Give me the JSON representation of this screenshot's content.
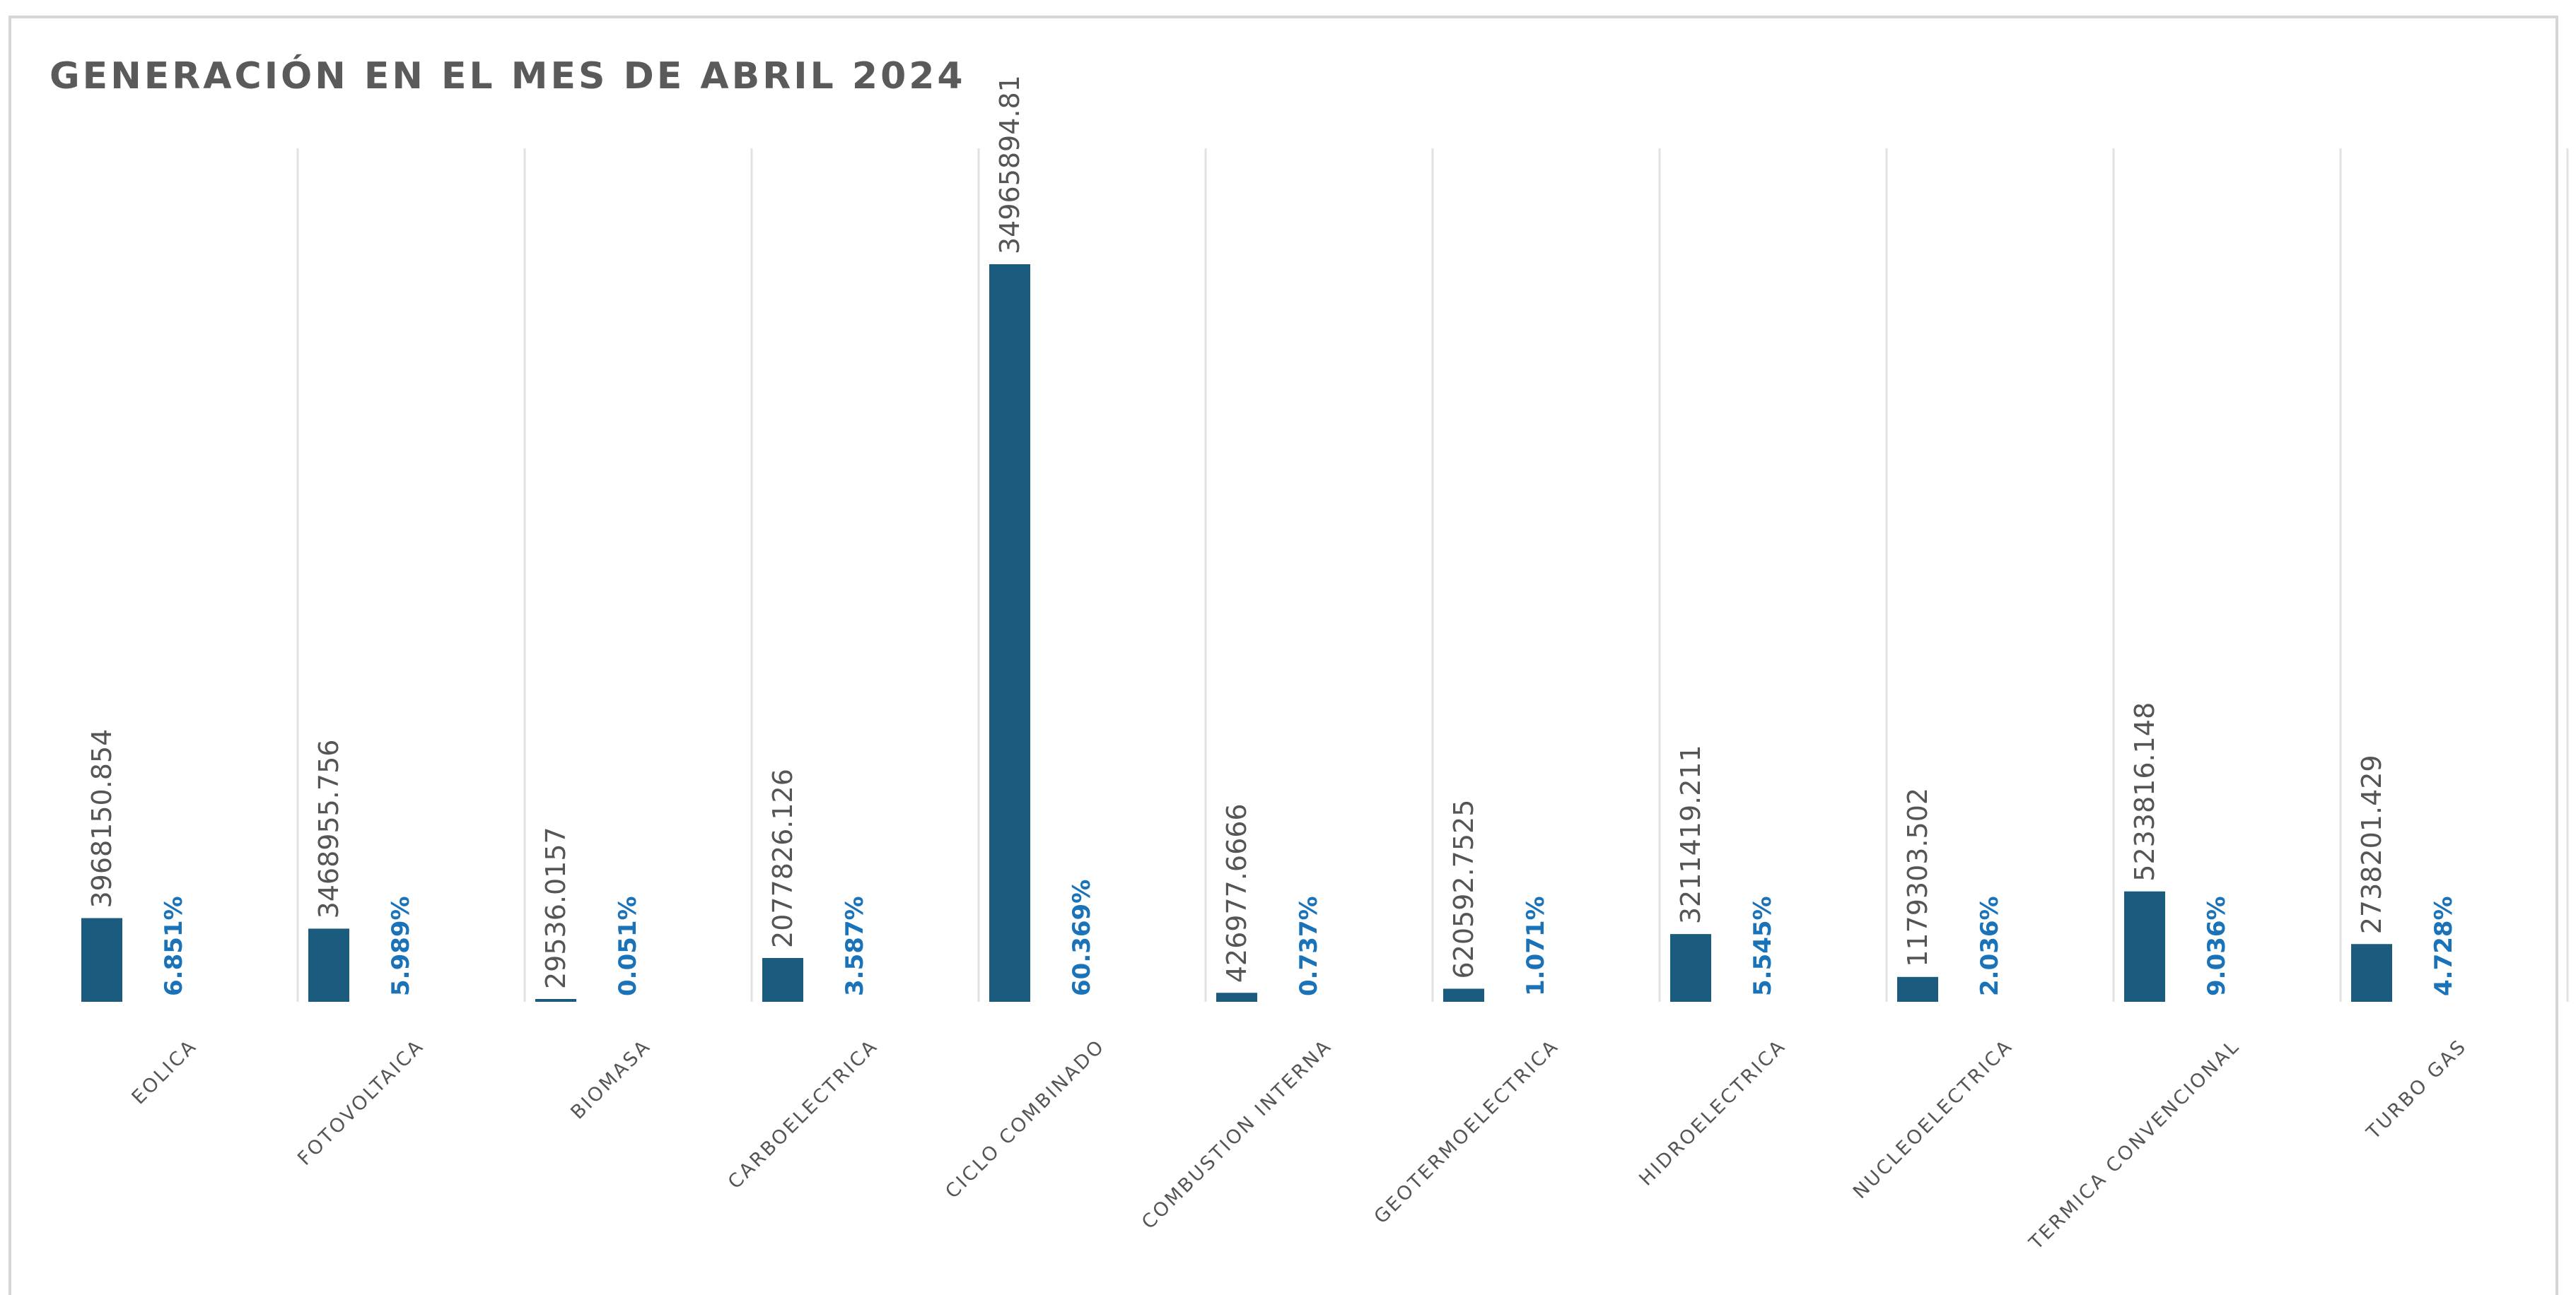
{
  "chart_data": {
    "type": "bar",
    "title": "GENERACIÓN  EN EL MES DE ABRIL 2024",
    "xlabel": "",
    "ylabel": "",
    "grid": "vertical separators",
    "legend": "none",
    "ylim": [
      0,
      40000000
    ],
    "categories": [
      "EOLICA",
      "FOTOVOLTAICA",
      "BIOMASA",
      "CARBOELECTRICA",
      "CICLO COMBINADO",
      "COMBUSTION INTERNA",
      "GEOTERMOELECTRICA",
      "HIDROELECTRICA",
      "NUCLEOELECTRICA",
      "TERMICA CONVENCIONAL",
      "TURBO GAS"
    ],
    "values": [
      3968150.854,
      3468955.756,
      29536.0157,
      2077826.126,
      34965894.81,
      426977.6666,
      620592.7525,
      3211419.211,
      1179303.502,
      5233816.148,
      2738201.429
    ],
    "value_labels": [
      "3968150.854",
      "3468955.756",
      "29536.0157",
      "2077826.126",
      "34965894.81",
      "426977.6666",
      "620592.7525",
      "3211419.211",
      "1179303.502",
      "5233816.148",
      "2738201.429"
    ],
    "percent_labels": [
      "6.851%",
      "5.989%",
      "0.051%",
      "3.587%",
      "60.369%",
      "0.737%",
      "1.071%",
      "5.545%",
      "2.036%",
      "9.036%",
      "4.728%"
    ],
    "colors": {
      "bar": "#1b5c7e",
      "percent_text": "#1a73b8",
      "value_text": "#555555",
      "category_text": "#555555",
      "grid": "#e2e2e2",
      "title": "#5a5a5a"
    }
  }
}
